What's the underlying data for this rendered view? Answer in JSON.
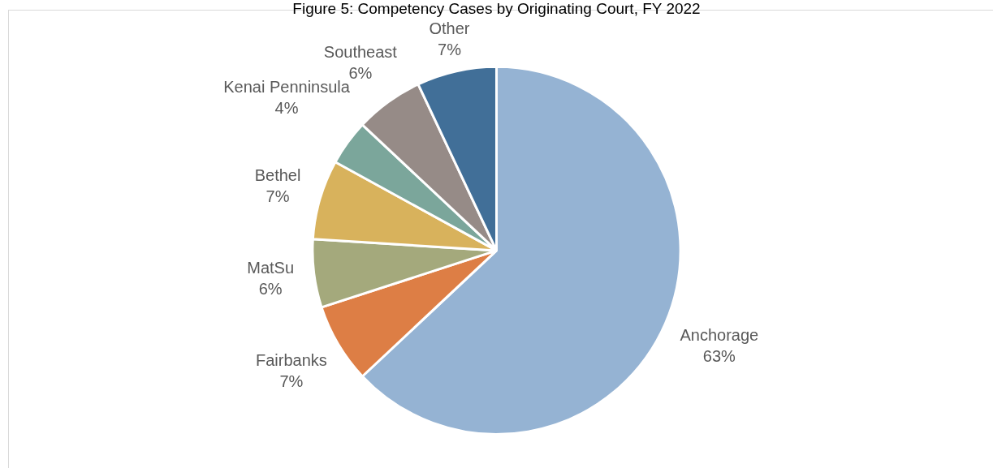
{
  "chart_data": {
    "type": "pie",
    "title": "Figure 5: Competency Cases by Originating Court, FY 2022",
    "categories": [
      "Anchorage",
      "Fairbanks",
      "MatSu",
      "Bethel",
      "Kenai Penninsula",
      "Southeast",
      "Other"
    ],
    "values": [
      63,
      7,
      6,
      7,
      4,
      6,
      7
    ],
    "colors": [
      "#95b3d3",
      "#dd7e45",
      "#a4a97c",
      "#d8b25c",
      "#7ba69b",
      "#968b87",
      "#416f98"
    ],
    "value_labels": [
      "63%",
      "7%",
      "6%",
      "7%",
      "4%",
      "6%",
      "7%"
    ],
    "legend": false
  }
}
